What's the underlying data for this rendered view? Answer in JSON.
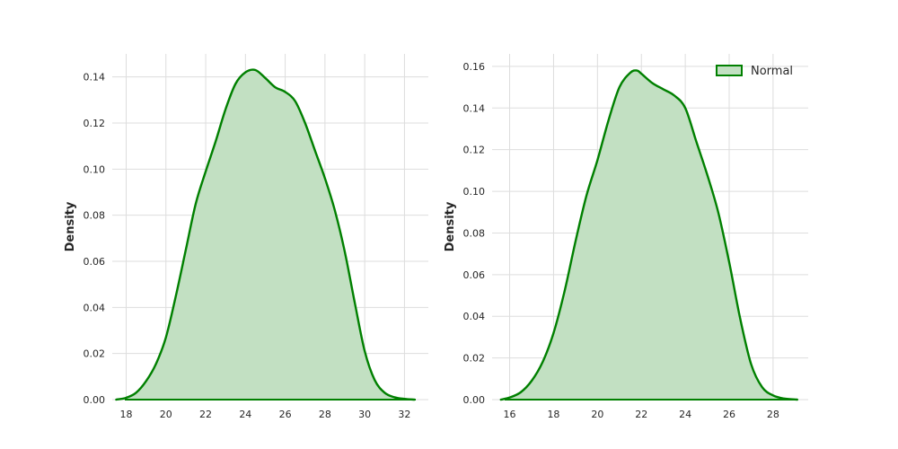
{
  "chart_data": [
    {
      "type": "area",
      "subtype": "kde",
      "title": "",
      "xlabel": "",
      "ylabel": "Density",
      "xlim": [
        17.3,
        33.2
      ],
      "ylim": [
        0,
        0.15
      ],
      "xticks": [
        18,
        20,
        22,
        24,
        26,
        28,
        30,
        32
      ],
      "yticks": [
        0.0,
        0.02,
        0.04,
        0.06,
        0.08,
        0.1,
        0.12,
        0.14
      ],
      "ytick_labels": [
        "0.00",
        "0.02",
        "0.04",
        "0.06",
        "0.08",
        "0.10",
        "0.12",
        "0.14"
      ],
      "grid": true,
      "legend": null,
      "line_color": "#008000",
      "fill_color": "#c2e0c2",
      "series": [
        {
          "x": [
            17.5,
            18.0,
            18.5,
            19.0,
            19.5,
            20.0,
            20.5,
            21.0,
            21.5,
            22.0,
            22.5,
            23.0,
            23.5,
            24.0,
            24.5,
            25.0,
            25.5,
            26.0,
            26.5,
            27.0,
            27.5,
            28.0,
            28.5,
            29.0,
            29.5,
            30.0,
            30.5,
            31.0,
            31.5,
            32.0,
            32.5
          ],
          "y": [
            0.0,
            0.0008,
            0.003,
            0.008,
            0.0155,
            0.027,
            0.045,
            0.065,
            0.085,
            0.099,
            0.112,
            0.126,
            0.137,
            0.142,
            0.143,
            0.1395,
            0.1355,
            0.1335,
            0.1295,
            0.12,
            0.108,
            0.096,
            0.082,
            0.064,
            0.042,
            0.021,
            0.0085,
            0.003,
            0.001,
            0.0003,
            0.0
          ]
        }
      ]
    },
    {
      "type": "area",
      "subtype": "kde",
      "title": "",
      "xlabel": "",
      "ylabel": "Density",
      "xlim": [
        15.2,
        29.6
      ],
      "ylim": [
        0,
        0.166
      ],
      "xticks": [
        16,
        18,
        20,
        22,
        24,
        26,
        28
      ],
      "yticks": [
        0.0,
        0.02,
        0.04,
        0.06,
        0.08,
        0.1,
        0.12,
        0.14,
        0.16
      ],
      "ytick_labels": [
        "0.00",
        "0.02",
        "0.04",
        "0.06",
        "0.08",
        "0.10",
        "0.12",
        "0.14",
        "0.16"
      ],
      "grid": true,
      "legend": {
        "placement": "top-right",
        "entries": [
          "Normal"
        ]
      },
      "line_color": "#008000",
      "fill_color": "#c2e0c2",
      "series": [
        {
          "name": "Normal",
          "x": [
            15.6,
            16.0,
            16.5,
            17.0,
            17.5,
            18.0,
            18.5,
            19.0,
            19.5,
            20.0,
            20.5,
            21.0,
            21.5,
            21.8,
            22.0,
            22.5,
            23.0,
            23.5,
            24.0,
            24.5,
            25.0,
            25.5,
            26.0,
            26.5,
            27.0,
            27.5,
            28.0,
            28.5,
            29.1
          ],
          "y": [
            0.0,
            0.001,
            0.0035,
            0.009,
            0.018,
            0.032,
            0.052,
            0.076,
            0.098,
            0.115,
            0.134,
            0.15,
            0.157,
            0.158,
            0.1565,
            0.152,
            0.149,
            0.146,
            0.14,
            0.124,
            0.108,
            0.09,
            0.066,
            0.039,
            0.017,
            0.006,
            0.002,
            0.0005,
            0.0
          ]
        }
      ]
    }
  ]
}
